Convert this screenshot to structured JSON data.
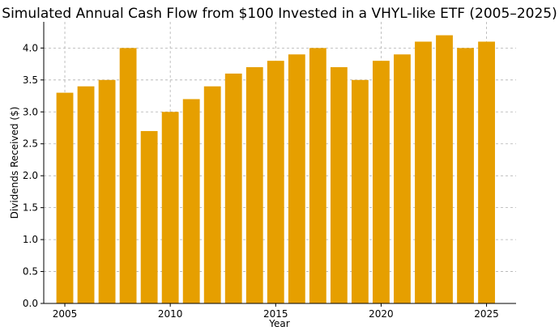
{
  "chart_data": {
    "type": "bar",
    "title": "Simulated Annual Cash Flow from $100 Invested in a VHYL-like ETF (2005–2025)",
    "xlabel": "Year",
    "ylabel": "Dividends Received ($)",
    "x": [
      2005,
      2006,
      2007,
      2008,
      2009,
      2010,
      2011,
      2012,
      2013,
      2014,
      2015,
      2016,
      2017,
      2018,
      2019,
      2020,
      2021,
      2022,
      2023,
      2024,
      2025
    ],
    "values": [
      3.3,
      3.4,
      3.5,
      4.0,
      2.7,
      3.0,
      3.2,
      3.4,
      3.6,
      3.7,
      3.8,
      3.9,
      4.0,
      3.7,
      3.5,
      3.8,
      3.9,
      4.1,
      4.2,
      4.0,
      4.1
    ],
    "xlim": [
      2004,
      2026.4
    ],
    "ylim": [
      0,
      4.41
    ],
    "xticks": [
      2005,
      2010,
      2015,
      2020,
      2025
    ],
    "yticks": [
      0.0,
      0.5,
      1.0,
      1.5,
      2.0,
      2.5,
      3.0,
      3.5,
      4.0
    ],
    "bar_color": "#E69F00",
    "grid": true
  }
}
